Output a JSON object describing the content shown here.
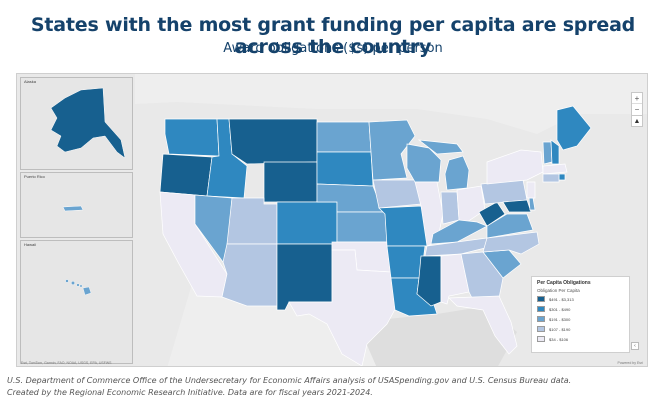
{
  "header": {
    "title": "States with the most grant funding per capita are spread across the country",
    "subtitle": "Award obligations ($s) per person"
  },
  "insets": {
    "alaska": "Alaska",
    "puerto_rico": "Puerto Rico",
    "hawaii": "Hawaii"
  },
  "map_controls": {
    "zoom_in": "+",
    "zoom_out": "−",
    "home": "⌂",
    "compass": "▲"
  },
  "legend": {
    "title": "Per Capita Obligations",
    "subtitle": "Obligation Per Capita",
    "classes": [
      {
        "label": "$491 - $3,313",
        "color": "#17608f"
      },
      {
        "label": "$301 - $490",
        "color": "#2f88c0"
      },
      {
        "label": "$191 - $300",
        "color": "#6aa4d0"
      },
      {
        "label": "$107 - $190",
        "color": "#b3c6e2"
      },
      {
        "label": "$34 - $106",
        "color": "#eceaf4"
      }
    ],
    "toggle": "‹"
  },
  "attribution": {
    "left": "Esri, TomTom, Garmin, FAO, NOAA, USGS, EPA, USFWS",
    "right": "Powered by Esri"
  },
  "footer": {
    "source": "U.S. Department of Commerce Office of the Undersecretary for Economic Affairs analysis of USASpending.gov and U.S. Census Bureau data.",
    "credit": "Created by the Regional Economic Research Initiative. Data are for fiscal years 2021-2024."
  },
  "colors": {
    "title": "#15426b",
    "class1": "#17608f",
    "class2": "#2f88c0",
    "class3": "#6aa4d0",
    "class4": "#b3c6e2",
    "class5": "#eceaf4",
    "basemap": "#e9e9e9"
  }
}
